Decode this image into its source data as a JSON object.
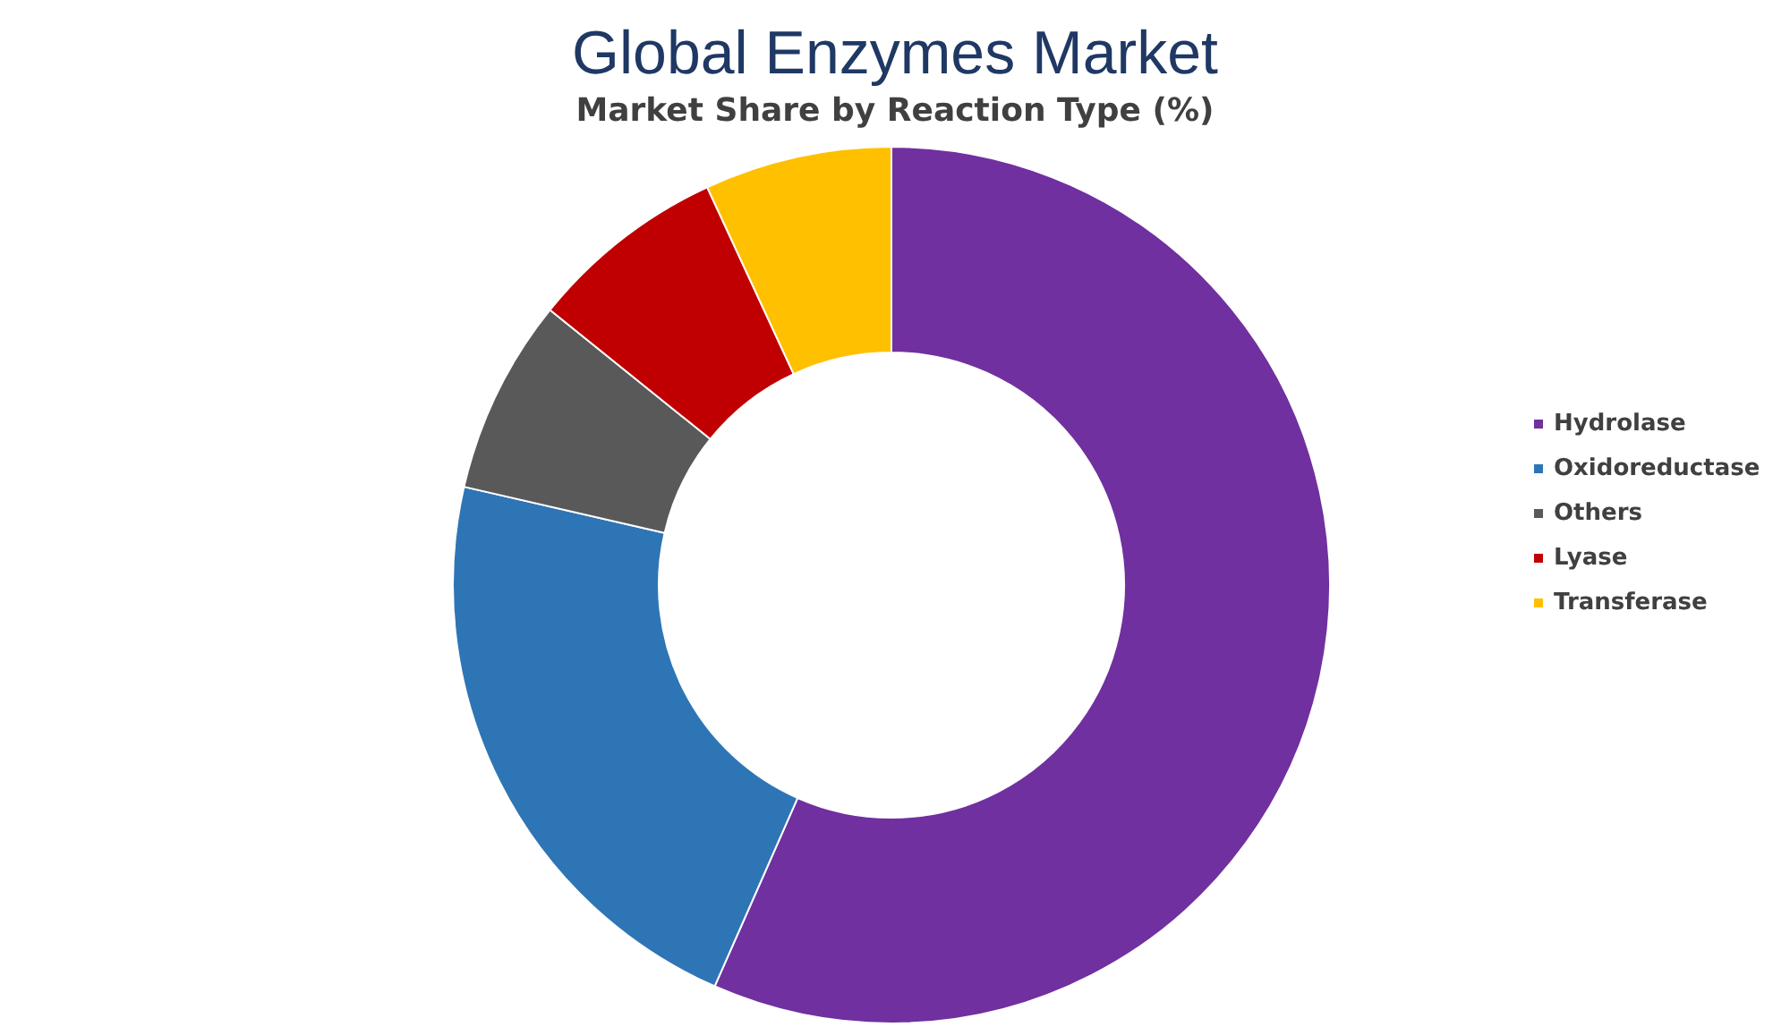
{
  "chart_data": {
    "type": "donut",
    "title": "Global Enzymes Market",
    "subtitle": "Market Share by Reaction Type (%)",
    "categories": [
      "Hydrolase",
      "Oxidoreductase",
      "Others",
      "Lyase",
      "Transferase"
    ],
    "values": [
      56.6,
      22,
      7.2,
      7.3,
      6.9
    ],
    "colors": [
      "#7030a0",
      "#2e75b6",
      "#595959",
      "#c00000",
      "#ffc000"
    ],
    "legend": "right"
  }
}
